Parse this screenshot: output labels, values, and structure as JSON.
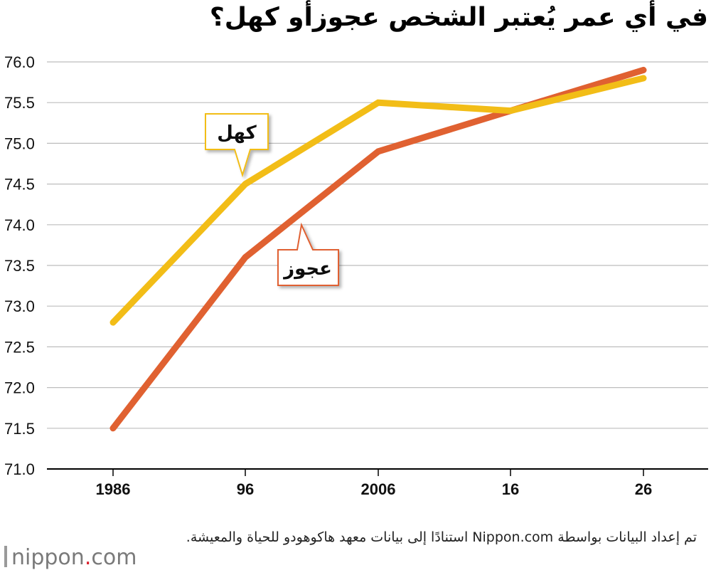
{
  "title": "في أي عمر يُعتبر الشخص عجوزأو كهل؟",
  "source_note": "تم إعداد البيانات بواسطة Nippon.com استنادًا إلى بيانات معهد هاكوهودو للحياة والمعيشة.",
  "logo": {
    "prefix": "nippon",
    "dot": ".",
    "suffix": "com",
    "dot_color": "#d91e2a"
  },
  "chart_data": {
    "type": "line",
    "title": "في أي عمر يُعتبر الشخص عجوزأو كهل؟",
    "categories": [
      "1986",
      "96",
      "2006",
      "16",
      "26"
    ],
    "yticks": [
      "76.0",
      "75.5",
      "75.0",
      "74.5",
      "74.0",
      "73.5",
      "73.0",
      "72.5",
      "72.0",
      "71.5",
      "71.0"
    ],
    "ylim": [
      71.0,
      76.0
    ],
    "grid": true,
    "series": [
      {
        "name": "كهل",
        "color": "#f2bd17",
        "values": [
          72.8,
          74.5,
          75.5,
          75.4,
          75.8
        ]
      },
      {
        "name": "عجوز",
        "color": "#e06131",
        "values": [
          71.5,
          73.6,
          74.9,
          75.4,
          75.9
        ]
      }
    ],
    "callouts": [
      {
        "series": 0,
        "label": "كهل",
        "border_color": "#f2bd17"
      },
      {
        "series": 1,
        "label": "عجوز",
        "border_color": "#e06131"
      }
    ]
  }
}
